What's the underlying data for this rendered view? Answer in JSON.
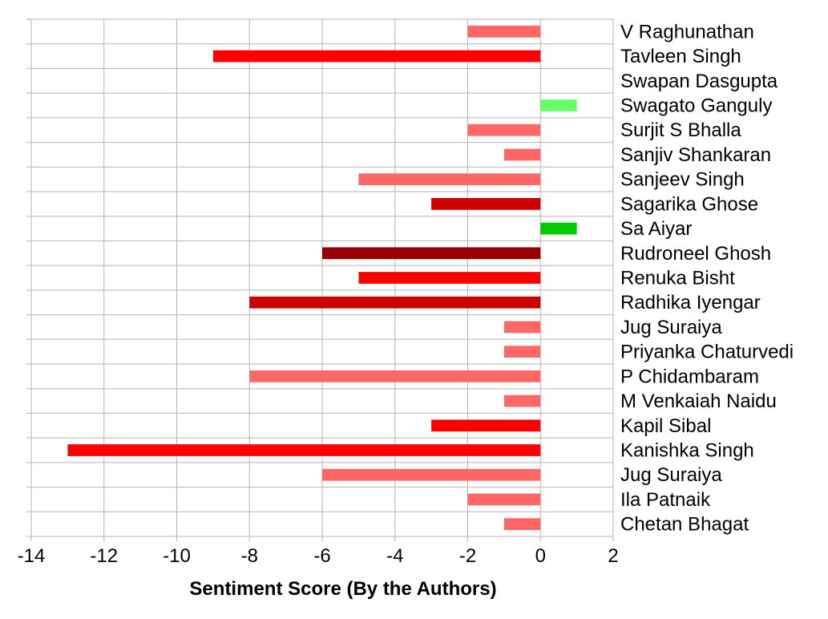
{
  "chart_data": {
    "type": "bar",
    "orientation": "horizontal",
    "xlabel": "Sentiment Score (By the Authors)",
    "xlim": [
      -14,
      2
    ],
    "xticks": [
      -14,
      -12,
      -10,
      -8,
      -6,
      -4,
      -2,
      0,
      2
    ],
    "xtick_labels": [
      "-14",
      "-12",
      "-10",
      "-8",
      "-6",
      "-4",
      "-2",
      "0",
      "2"
    ],
    "grid": true,
    "category_labels_position": "right",
    "categories": [
      "V Raghunathan",
      "Tavleen Singh",
      "Swapan Dasgupta",
      "Swagato Ganguly",
      "Surjit S Bhalla",
      "Sanjiv Shankaran",
      "Sanjeev Singh",
      "Sagarika Ghose",
      "Sa Aiyar",
      "Rudroneel Ghosh",
      "Renuka Bisht",
      "Radhika Iyengar",
      "Jug Suraiya",
      "Priyanka Chaturvedi",
      "P Chidambaram",
      "M Venkaiah Naidu",
      "Kapil Sibal",
      "Kanishka Singh",
      "Jug Suraiya",
      "Ila Patnaik",
      "Chetan Bhagat"
    ],
    "values": [
      -2,
      -9,
      0,
      1,
      -2,
      -1,
      -5,
      -3,
      1,
      -6,
      -5,
      -8,
      -1,
      -1,
      -8,
      -1,
      -3,
      -13,
      -6,
      -2,
      -1
    ],
    "colors": [
      "#ff6666",
      "#ff0000",
      "#ff6666",
      "#66ff66",
      "#ff6666",
      "#ff6666",
      "#ff6666",
      "#cc0000",
      "#00cc00",
      "#990000",
      "#ff0000",
      "#cc0000",
      "#ff6666",
      "#ff6666",
      "#ff6666",
      "#ff6666",
      "#ff0000",
      "#ff0000",
      "#ff6666",
      "#ff6666",
      "#ff6666"
    ]
  }
}
